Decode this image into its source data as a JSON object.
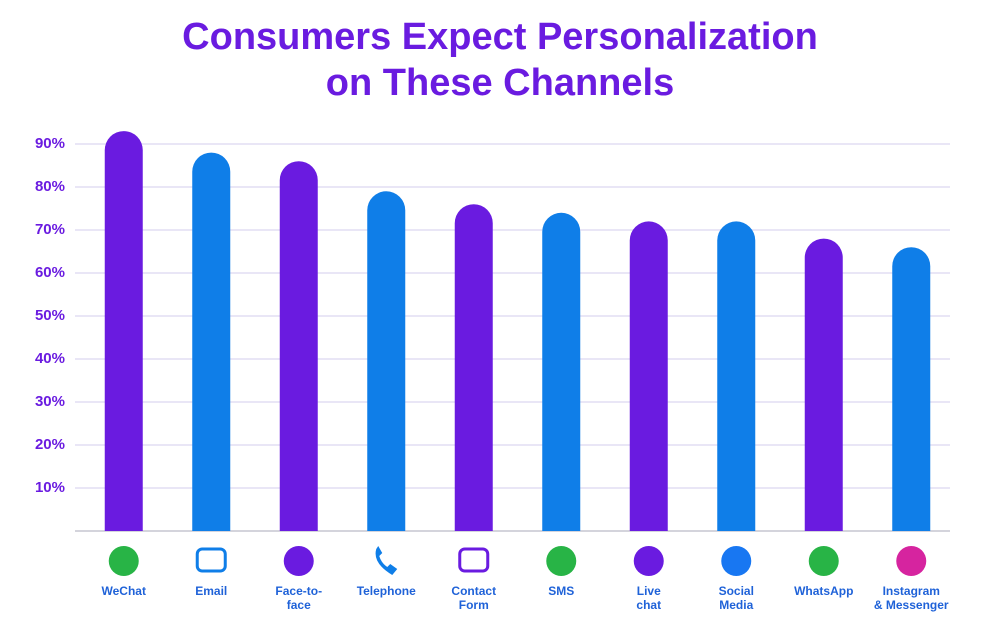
{
  "chart_data": {
    "type": "bar",
    "title": "Consumers Expect Personalization\non These Channels",
    "categories": [
      "WeChat",
      "Email",
      "Face-to-\nface",
      "Telephone",
      "Contact\nForm",
      "SMS",
      "Live\nchat",
      "Social\nMedia",
      "WhatsApp",
      "Instagram\n& Messenger"
    ],
    "values": [
      93,
      88,
      86,
      79,
      76,
      74,
      72,
      72,
      68,
      66
    ],
    "colors": [
      "#6a1be0",
      "#0f7ee8",
      "#6a1be0",
      "#0f7ee8",
      "#6a1be0",
      "#0f7ee8",
      "#6a1be0",
      "#0f7ee8",
      "#6a1be0",
      "#0f7ee8"
    ],
    "ylim": [
      0,
      95
    ],
    "yticks": [
      {
        "value": 10,
        "label": "10%"
      },
      {
        "value": 20,
        "label": "20%"
      },
      {
        "value": 30,
        "label": "30%"
      },
      {
        "value": 40,
        "label": "40%"
      },
      {
        "value": 50,
        "label": "50%"
      },
      {
        "value": 60,
        "label": "60%"
      },
      {
        "value": 70,
        "label": "70%"
      },
      {
        "value": 80,
        "label": "80%"
      },
      {
        "value": 90,
        "label": "90%"
      }
    ],
    "grid": true
  }
}
